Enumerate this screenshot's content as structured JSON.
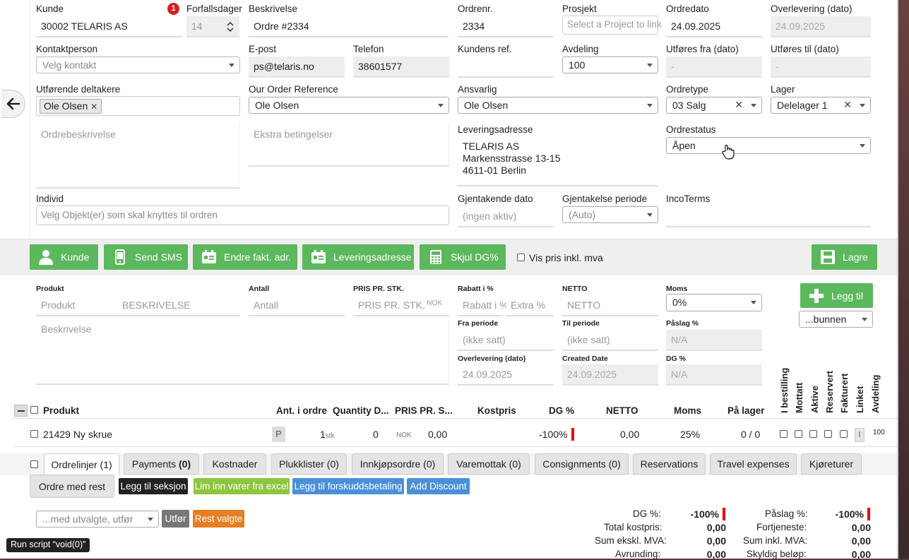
{
  "header": {
    "kunde_label": "Kunde",
    "kunde_badge": "1",
    "kunde_value": "30002 TELARIS AS",
    "forfall_label": "Forfallsdager",
    "forfall_value": "14",
    "beskrivelse_label": "Beskrivelse",
    "beskrivelse_value": "Ordre #2334",
    "ordrenr_label": "Ordrenr.",
    "ordrenr_value": "2334",
    "prosjekt_label": "Prosjekt",
    "prosjekt_placeholder": "Select a Project to link",
    "ordredato_label": "Ordredato",
    "ordredato_value": "24.09.2025",
    "overlevering_label": "Overlevering (dato)",
    "overlevering_value": "24.09.2025",
    "kontaktperson_label": "Kontaktperson",
    "kontaktperson_value": "Velg kontakt",
    "epost_label": "E-post",
    "epost_value": "ps@telaris.no",
    "telefon_label": "Telefon",
    "telefon_value": "38601577",
    "kundens_ref_label": "Kundens ref.",
    "avdeling_label": "Avdeling",
    "avdeling_value": "100",
    "utfores_fra_label": "Utføres fra (dato)",
    "utfores_fra_value": "-",
    "utfores_til_label": "Utføres til (dato)",
    "utfores_til_value": "-",
    "deltakere_label": "Utførende deltakere",
    "deltakere_tag": "Ole Olsen",
    "our_ref_label": "Our Order Reference",
    "our_ref_value": "Ole Olsen",
    "ansvarlig_label": "Ansvarlig",
    "ansvarlig_value": "Ole Olsen",
    "ordretype_label": "Ordretype",
    "ordretype_value": "03 Salg",
    "lager_label": "Lager",
    "lager_value": "Delelager 1",
    "ordrebeskrivelse_placeholder": "Ordrebeskrivelse",
    "ekstra_placeholder": "Ekstra betingelser",
    "leveringsadresse_label": "Leveringsadresse",
    "leveringsadresse_line1": "TELARIS AS",
    "leveringsadresse_line2": "Markensstrasse 13-15",
    "leveringsadresse_line3": "4611-01 Berlin",
    "ordrestatus_label": "Ordrestatus",
    "ordrestatus_value": "Åpen",
    "individ_label": "Individ",
    "individ_placeholder": "Velg Objekt(er) som skal knyttes til ordren",
    "gjentakende_label": "Gjentakende dato",
    "gjentakende_value": "(ingen aktiv)",
    "gjentakelse_periode_label": "Gjentakelse periode",
    "gjentakelse_periode_value": "(Auto)",
    "incoterms_label": "IncoTerms"
  },
  "actions": {
    "kunde": "Kunde",
    "send_sms": "Send SMS",
    "endre_fakt": "Endre fakt. adr.",
    "leveringsadresse": "Leveringsadresse",
    "skjul_dg": "Skjul DG%",
    "vis_pris": "Vis pris inkl. mva",
    "lagre": "Lagre"
  },
  "line_entry": {
    "produkt_label": "Produkt",
    "produkt_placeholder": "Produkt",
    "beskrivelse_col_placeholder": "BESKRIVELSE",
    "antall_label": "Antall",
    "antall_placeholder": "Antall",
    "pris_label": "PRIS PR. STK.",
    "pris_placeholder": "PRIS PR. STK.",
    "pris_currency": "NOK",
    "rabatt_label": "Rabatt i %",
    "rabatt_placeholder": "Rabatt i %",
    "ekstra_placeholder": "Extra %",
    "netto_label": "NETTO",
    "netto_placeholder": "NETTO",
    "moms_label": "Moms",
    "moms_value": "0%",
    "legg_til": "Legg til",
    "position_value": "...bunnen",
    "beskrivelse_placeholder": "Beskrivelse",
    "fra_periode_label": "Fra periode",
    "fra_periode_value": "(ikke satt)",
    "til_periode_label": "Til periode",
    "til_periode_value": "(ikke satt)",
    "paslag_label": "Påslag %",
    "paslag_value": "N/A",
    "overlevering_label": "Overlevering (dato)",
    "overlevering_value": "24.09.2025",
    "created_label": "Created Date",
    "created_value": "24.09.2025",
    "dg_label": "DG %",
    "dg_value": "N/A"
  },
  "table": {
    "headers": {
      "produkt": "Produkt",
      "ant": "Ant. i ordre",
      "qty": "Quantity D...",
      "pris": "PRIS PR. S...",
      "kostpris": "Kostpris",
      "dg": "DG %",
      "netto": "NETTO",
      "moms": "Moms",
      "lager": "På lager"
    },
    "vertical_headers": [
      "I bestilling",
      "Mottatt",
      "Aktive",
      "Reservert",
      "Fakturert",
      "Linket",
      "Avdeling"
    ],
    "row": {
      "produkt": "21429 Ny skrue",
      "p_badge": "P",
      "ant": "1",
      "ant_unit": "stk",
      "qty": "0",
      "currency": "NOK",
      "pris": "0,00",
      "dg": "-100%",
      "netto": "0,00",
      "moms": "25%",
      "lager": "0 / 0",
      "linket": "l",
      "avdeling": "100"
    }
  },
  "tabs": [
    {
      "label": "Ordrelinjer (1)"
    },
    {
      "label": "Payments",
      "count": "(0)"
    },
    {
      "label": "Kostnader"
    },
    {
      "label": "Plukklister (0)"
    },
    {
      "label": "Innkjøpsordre (0)"
    },
    {
      "label": "Varemottak (0)"
    },
    {
      "label": "Consignments (0)"
    },
    {
      "label": "Reservations"
    },
    {
      "label": "Travel expenses"
    },
    {
      "label": "Kjøreturer"
    }
  ],
  "sub_actions": {
    "ordre_med_rest": "Ordre med rest",
    "legg_til_seksjon": "Legg til seksjon",
    "lim_inn": "Lim inn varer fra excel",
    "forskudd": "Legg til forskuddsbetaling",
    "discount": "Add Discount",
    "bulk_select": "...med utvalgte, utfør",
    "utfor": "Utfør",
    "rest_valgte": "Rest valgte"
  },
  "summary": {
    "dg_label": "DG %:",
    "dg_value": "-100%",
    "total_kostpris_label": "Total kostpris:",
    "total_kostpris_value": "0,00",
    "sum_ekskl_label": "Sum ekskl. MVA:",
    "sum_ekskl_value": "0,00",
    "avrunding_label": "Avrunding:",
    "avrunding_value": "0,00",
    "paslag_label": "Påslag %:",
    "paslag_value": "-100%",
    "fortjeneste_label": "Fortjeneste:",
    "fortjeneste_value": "0,00",
    "sum_inkl_label": "Sum inkl. MVA:",
    "sum_inkl_value": "0,00",
    "skyldig_label": "Skyldig beløp:",
    "skyldig_value": "0,00"
  },
  "status_bar": "Run script “void(0)”",
  "colors": {
    "green": "#5cb85c",
    "blue": "#4a90d9",
    "lime": "#8dc63f",
    "orange": "#e67e22",
    "black": "#222222",
    "red": "#e00000"
  }
}
